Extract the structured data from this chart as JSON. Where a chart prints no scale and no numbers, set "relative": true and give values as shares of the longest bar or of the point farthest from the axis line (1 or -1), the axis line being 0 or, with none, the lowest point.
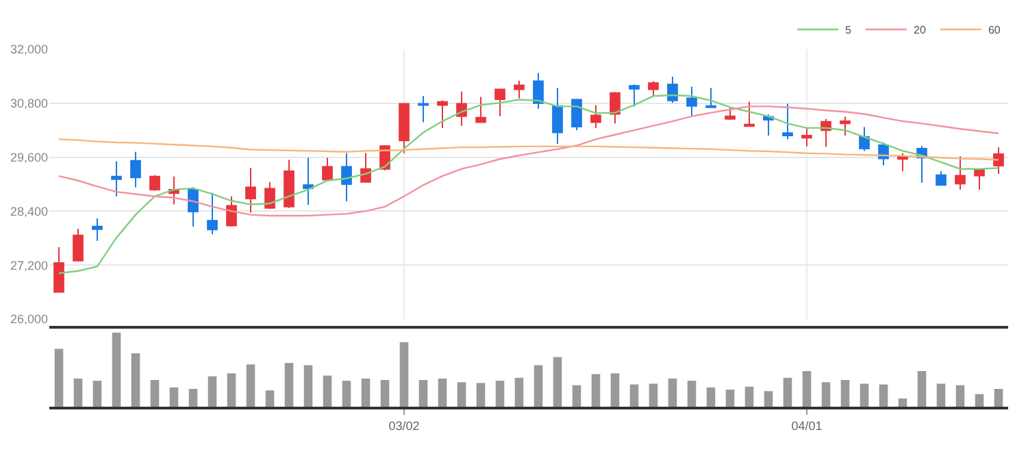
{
  "chart_data": [
    {
      "type": "candlestick",
      "categories": [
        null,
        null,
        null,
        null,
        null,
        null,
        null,
        null,
        null,
        null,
        null,
        null,
        null,
        null,
        null,
        null,
        null,
        null,
        null,
        null,
        null,
        null,
        null,
        null,
        null,
        null,
        null,
        null,
        null,
        null,
        null,
        null,
        null,
        null,
        null,
        null,
        null,
        null,
        null,
        null,
        null,
        null,
        null,
        null,
        null,
        null,
        null,
        null,
        null,
        null
      ],
      "ohlc": [
        [
          26600,
          27600,
          26600,
          27250
        ],
        [
          27300,
          28010,
          27280,
          27860
        ],
        [
          28060,
          28240,
          27740,
          28000
        ],
        [
          29170,
          29510,
          28730,
          29110
        ],
        [
          29520,
          29720,
          28930,
          29150
        ],
        [
          28880,
          29200,
          28850,
          29170
        ],
        [
          28800,
          29170,
          28550,
          28880
        ],
        [
          28880,
          28930,
          28060,
          28390
        ],
        [
          28190,
          28810,
          27890,
          27990
        ],
        [
          28080,
          28730,
          28060,
          28520
        ],
        [
          28680,
          29360,
          28370,
          28930
        ],
        [
          28470,
          29050,
          28450,
          28900
        ],
        [
          28500,
          29540,
          28470,
          29290
        ],
        [
          28980,
          29590,
          28540,
          28910
        ],
        [
          29100,
          29590,
          29080,
          29390
        ],
        [
          29390,
          29690,
          28620,
          29000
        ],
        [
          29050,
          29690,
          29030,
          29340
        ],
        [
          29340,
          29870,
          29310,
          29850
        ],
        [
          29970,
          30800,
          29690,
          30790
        ],
        [
          30790,
          30960,
          30380,
          30760
        ],
        [
          30760,
          30860,
          30250,
          30830
        ],
        [
          30510,
          31060,
          30300,
          30790
        ],
        [
          30380,
          30940,
          30370,
          30480
        ],
        [
          30890,
          31110,
          30510,
          31110
        ],
        [
          31110,
          31300,
          30910,
          31200
        ],
        [
          31290,
          31470,
          30680,
          30800
        ],
        [
          30740,
          31140,
          29900,
          30150
        ],
        [
          30880,
          30900,
          30200,
          30280
        ],
        [
          30380,
          30760,
          30250,
          30530
        ],
        [
          30560,
          31050,
          30350,
          31030
        ],
        [
          31190,
          31220,
          30730,
          31120
        ],
        [
          31110,
          31290,
          30960,
          31250
        ],
        [
          31220,
          31390,
          30810,
          30860
        ],
        [
          30910,
          31170,
          30510,
          30740
        ],
        [
          30740,
          31140,
          30700,
          30710
        ],
        [
          30450,
          30710,
          30430,
          30510
        ],
        [
          30290,
          30830,
          30290,
          30330
        ],
        [
          30500,
          30550,
          30080,
          30430
        ],
        [
          30140,
          30790,
          30000,
          30080
        ],
        [
          30030,
          30250,
          29840,
          30080
        ],
        [
          30200,
          30450,
          29830,
          30390
        ],
        [
          30350,
          30500,
          30080,
          30400
        ],
        [
          30050,
          30270,
          29740,
          29790
        ],
        [
          29870,
          29930,
          29420,
          29570
        ],
        [
          29560,
          29690,
          29290,
          29610
        ],
        [
          29790,
          29850,
          29030,
          29590
        ],
        [
          29200,
          29290,
          28980,
          28980
        ],
        [
          29010,
          29620,
          28880,
          29190
        ],
        [
          29190,
          29320,
          28880,
          29320
        ],
        [
          29410,
          29820,
          29230,
          29670
        ]
      ],
      "series": [
        {
          "name": "5",
          "type": "line",
          "color": "#7fcf7f",
          "values": [
            27020,
            27070,
            27170,
            27810,
            28320,
            28730,
            28880,
            28910,
            28780,
            28630,
            28550,
            28570,
            28730,
            28880,
            29080,
            29130,
            29230,
            29390,
            29790,
            30150,
            30400,
            30610,
            30760,
            30810,
            30880,
            30860,
            30730,
            30730,
            30580,
            30590,
            30760,
            30960,
            30980,
            30960,
            30860,
            30710,
            30610,
            30510,
            30350,
            30250,
            30250,
            30200,
            30050,
            29900,
            29740,
            29640,
            29490,
            29340,
            29340,
            29360
          ]
        },
        {
          "name": "20",
          "type": "line",
          "color": "#f2929e",
          "values": [
            29180,
            29080,
            28950,
            28830,
            28780,
            28730,
            28700,
            28620,
            28500,
            28400,
            28320,
            28300,
            28300,
            28300,
            28320,
            28340,
            28400,
            28500,
            28730,
            28980,
            29180,
            29340,
            29440,
            29560,
            29640,
            29710,
            29780,
            29860,
            30000,
            30100,
            30200,
            30300,
            30400,
            30510,
            30590,
            30660,
            30730,
            30730,
            30710,
            30680,
            30640,
            30610,
            30560,
            30480,
            30400,
            30350,
            30290,
            30230,
            30180,
            30130
          ]
        },
        {
          "name": "60",
          "type": "line",
          "color": "#f6b67c",
          "values": [
            30000,
            29980,
            29950,
            29930,
            29920,
            29900,
            29880,
            29860,
            29840,
            29810,
            29770,
            29760,
            29750,
            29740,
            29730,
            29720,
            29740,
            29750,
            29760,
            29780,
            29800,
            29820,
            29820,
            29830,
            29840,
            29840,
            29840,
            29840,
            29840,
            29830,
            29820,
            29810,
            29800,
            29790,
            29780,
            29760,
            29740,
            29730,
            29710,
            29690,
            29680,
            29660,
            29650,
            29640,
            29630,
            29610,
            29590,
            29570,
            29560,
            29540
          ]
        }
      ],
      "ylim": [
        26000,
        32000
      ],
      "yticks": [
        {
          "value": 26000,
          "label": "26,000"
        },
        {
          "value": 27200,
          "label": "27,200"
        },
        {
          "value": 28400,
          "label": "28,400"
        },
        {
          "value": 29600,
          "label": "29,600"
        },
        {
          "value": 30800,
          "label": "30,800"
        },
        {
          "value": 32000,
          "label": "32,000"
        }
      ],
      "grid": true,
      "legend": "top right",
      "marker": "none",
      "line_style": "solid",
      "tick_labels": "y"
    },
    {
      "type": "bar",
      "relative": true,
      "color": "#999999",
      "categories": [
        null,
        null,
        null,
        null,
        null,
        null,
        null,
        null,
        null,
        null,
        null,
        null,
        null,
        null,
        null,
        null,
        null,
        null,
        "03/02",
        null,
        null,
        null,
        null,
        null,
        null,
        null,
        null,
        null,
        null,
        null,
        null,
        null,
        null,
        null,
        null,
        null,
        null,
        null,
        null,
        "04/01",
        null,
        null,
        null,
        null,
        null,
        null,
        null,
        null,
        null,
        null
      ],
      "values": [
        0.78,
        0.38,
        0.35,
        1.0,
        0.72,
        0.36,
        0.26,
        0.24,
        0.41,
        0.45,
        0.57,
        0.22,
        0.59,
        0.56,
        0.42,
        0.35,
        0.38,
        0.36,
        0.87,
        0.36,
        0.38,
        0.33,
        0.32,
        0.35,
        0.39,
        0.56,
        0.67,
        0.29,
        0.44,
        0.45,
        0.3,
        0.31,
        0.38,
        0.35,
        0.26,
        0.23,
        0.27,
        0.21,
        0.39,
        0.48,
        0.33,
        0.36,
        0.31,
        0.3,
        0.11,
        0.48,
        0.31,
        0.29,
        0.17,
        0.24
      ],
      "tick_labels": "x"
    }
  ]
}
